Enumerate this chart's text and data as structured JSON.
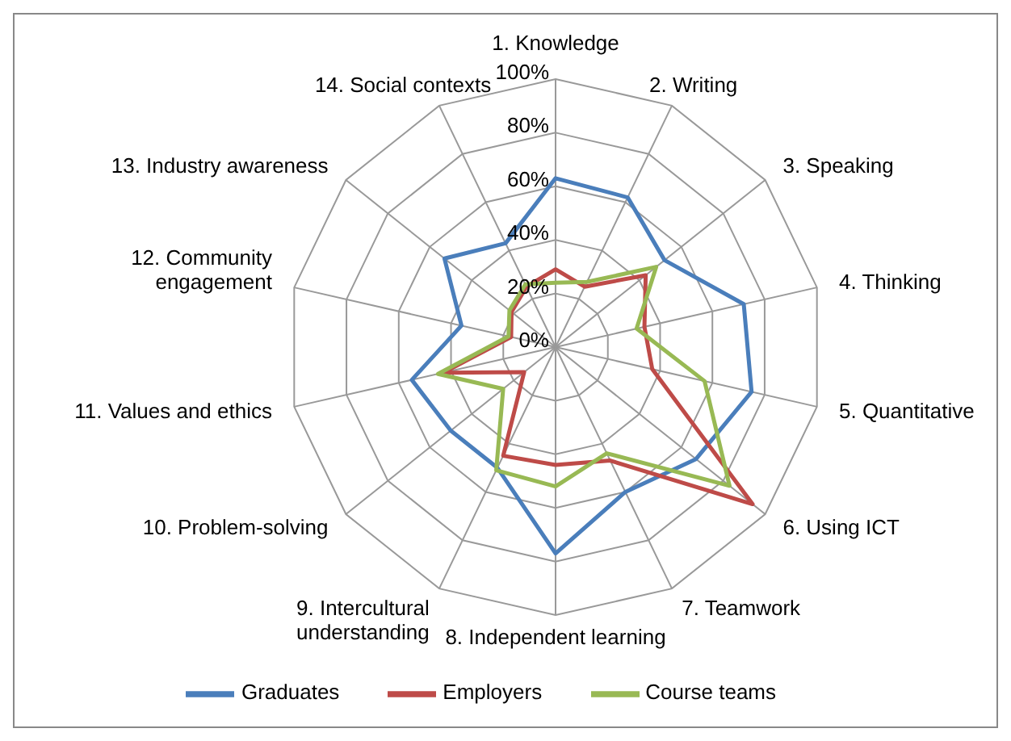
{
  "chart_data": {
    "type": "radar",
    "categories": [
      "1. Knowledge",
      "2. Writing",
      "3. Speaking",
      "4. Thinking",
      "5. Quantitative",
      "6. Using ICT",
      "7. Teamwork",
      "8. Independent learning",
      "9. Intercultural understanding",
      "10. Problem-solving",
      "11. Values and ethics",
      "12. Community engagement",
      "13. Industry awareness",
      "14. Social contexts"
    ],
    "series": [
      {
        "name": "Graduates",
        "color": "#4a7ebb",
        "values": [
          63,
          62,
          52,
          72,
          75,
          67,
          60,
          77,
          50,
          50,
          55,
          36,
          53,
          43
        ]
      },
      {
        "name": "Employers",
        "color": "#be4b48",
        "values": [
          29,
          25,
          43,
          34,
          37,
          94,
          47,
          44,
          45,
          15,
          43,
          17,
          21,
          25
        ]
      },
      {
        "name": "Course teams",
        "color": "#98b954",
        "values": [
          24,
          27,
          48,
          31,
          57,
          83,
          44,
          52,
          51,
          25,
          45,
          18,
          22,
          26
        ]
      }
    ],
    "ylim": [
      0,
      100
    ],
    "yticks": [
      {
        "value": 0,
        "label": "0%"
      },
      {
        "value": 20,
        "label": "20%"
      },
      {
        "value": 40,
        "label": "40%"
      },
      {
        "value": 60,
        "label": "60%"
      },
      {
        "value": 80,
        "label": "80%"
      },
      {
        "value": 100,
        "label": "100%"
      }
    ],
    "grid": true,
    "legend": "bottom",
    "marker": "none",
    "line_style": "solid"
  }
}
